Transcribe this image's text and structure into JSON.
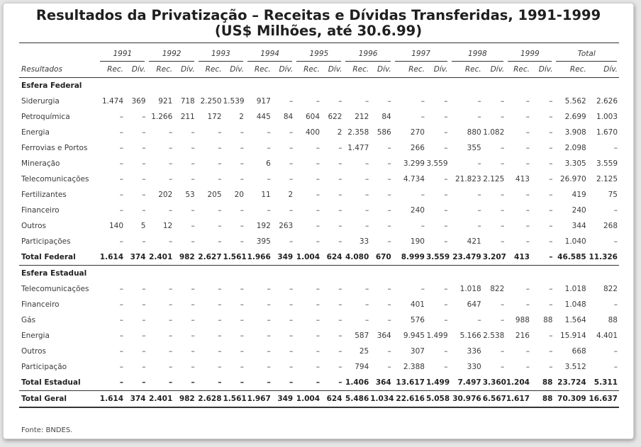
{
  "title": {
    "line1": "Resultados da Privatização – Receitas e Dívidas Transferidas, 1991-1999",
    "line2": "(US$ Milhões, até 30.6.99)"
  },
  "years": [
    "1991",
    "1992",
    "1993",
    "1994",
    "1995",
    "1996",
    "1997",
    "1998",
    "1999",
    "Total"
  ],
  "subheader": {
    "label": "Resultados",
    "rec": "Rec.",
    "div": "Dív."
  },
  "sections": {
    "federal": "Esfera Federal",
    "estadual": "Esfera Estadual"
  },
  "federal_rows": [
    {
      "label": "Siderurgia",
      "values": [
        "1.474",
        "369",
        "921",
        "718",
        "2.250",
        "1.539",
        "917",
        "–",
        "–",
        "–",
        "–",
        "–",
        "–",
        "–",
        "–",
        "–",
        "–",
        "–",
        "5.562",
        "2.626"
      ]
    },
    {
      "label": "Petroquímica",
      "values": [
        "–",
        "–",
        "1.266",
        "211",
        "172",
        "2",
        "445",
        "84",
        "604",
        "622",
        "212",
        "84",
        "–",
        "–",
        "–",
        "–",
        "–",
        "–",
        "2.699",
        "1.003"
      ]
    },
    {
      "label": "Energia",
      "values": [
        "–",
        "–",
        "–",
        "–",
        "–",
        "–",
        "–",
        "–",
        "400",
        "2",
        "2.358",
        "586",
        "270",
        "–",
        "880",
        "1.082",
        "–",
        "–",
        "3.908",
        "1.670"
      ]
    },
    {
      "label": "Ferrovias e Portos",
      "values": [
        "–",
        "–",
        "–",
        "–",
        "–",
        "–",
        "–",
        "–",
        "–",
        "–",
        "1.477",
        "–",
        "266",
        "–",
        "355",
        "–",
        "–",
        "–",
        "2.098",
        "–"
      ]
    },
    {
      "label": "Mineração",
      "values": [
        "–",
        "–",
        "–",
        "–",
        "–",
        "–",
        "6",
        "–",
        "–",
        "–",
        "–",
        "–",
        "3.299",
        "3.559",
        "–",
        "–",
        "–",
        "–",
        "3.305",
        "3.559"
      ]
    },
    {
      "label": "Telecomunicações",
      "values": [
        "–",
        "–",
        "–",
        "–",
        "–",
        "–",
        "–",
        "–",
        "–",
        "–",
        "–",
        "–",
        "4.734",
        "–",
        "21.823",
        "2.125",
        "413",
        "–",
        "26.970",
        "2.125"
      ]
    },
    {
      "label": "Fertilizantes",
      "values": [
        "–",
        "–",
        "202",
        "53",
        "205",
        "20",
        "11",
        "2",
        "–",
        "–",
        "–",
        "–",
        "–",
        "–",
        "–",
        "–",
        "–",
        "–",
        "419",
        "75"
      ]
    },
    {
      "label": "Financeiro",
      "values": [
        "–",
        "–",
        "–",
        "–",
        "–",
        "–",
        "–",
        "–",
        "–",
        "–",
        "–",
        "–",
        "240",
        "–",
        "–",
        "–",
        "–",
        "–",
        "240",
        "–"
      ]
    },
    {
      "label": "Outros",
      "values": [
        "140",
        "5",
        "12",
        "–",
        "–",
        "–",
        "192",
        "263",
        "–",
        "–",
        "–",
        "–",
        "–",
        "–",
        "–",
        "–",
        "–",
        "–",
        "344",
        "268"
      ]
    },
    {
      "label": "Participações",
      "values": [
        "–",
        "–",
        "–",
        "–",
        "–",
        "–",
        "395",
        "–",
        "–",
        "–",
        "33",
        "–",
        "190",
        "–",
        "421",
        "–",
        "–",
        "–",
        "1.040",
        "–"
      ]
    }
  ],
  "total_federal": {
    "label": "Total Federal",
    "values": [
      "1.614",
      "374",
      "2.401",
      "982",
      "2.627",
      "1.561",
      "1.966",
      "349",
      "1.004",
      "624",
      "4.080",
      "670",
      "8.999",
      "3.559",
      "23.479",
      "3.207",
      "413",
      "–",
      "46.585",
      "11.326"
    ]
  },
  "estadual_rows": [
    {
      "label": "Telecomunicações",
      "values": [
        "–",
        "–",
        "–",
        "–",
        "–",
        "–",
        "–",
        "–",
        "–",
        "–",
        "–",
        "–",
        "–",
        "–",
        "1.018",
        "822",
        "–",
        "–",
        "1.018",
        "822"
      ]
    },
    {
      "label": "Financeiro",
      "values": [
        "–",
        "–",
        "–",
        "–",
        "–",
        "–",
        "–",
        "–",
        "–",
        "–",
        "–",
        "–",
        "401",
        "–",
        "647",
        "–",
        "–",
        "–",
        "1.048",
        "–"
      ]
    },
    {
      "label": "Gás",
      "values": [
        "–",
        "–",
        "–",
        "–",
        "–",
        "–",
        "–",
        "–",
        "–",
        "–",
        "–",
        "–",
        "576",
        "–",
        "–",
        "–",
        "988",
        "88",
        "1.564",
        "88"
      ]
    },
    {
      "label": "Energia",
      "values": [
        "–",
        "–",
        "–",
        "–",
        "–",
        "–",
        "–",
        "–",
        "–",
        "–",
        "587",
        "364",
        "9.945",
        "1.499",
        "5.166",
        "2.538",
        "216",
        "–",
        "15.914",
        "4.401"
      ]
    },
    {
      "label": "Outros",
      "values": [
        "–",
        "–",
        "–",
        "–",
        "–",
        "–",
        "–",
        "–",
        "–",
        "–",
        "25",
        "–",
        "307",
        "–",
        "336",
        "–",
        "–",
        "–",
        "668",
        "–"
      ]
    },
    {
      "label": "Participação",
      "values": [
        "–",
        "–",
        "–",
        "–",
        "–",
        "–",
        "–",
        "–",
        "–",
        "–",
        "794",
        "–",
        "2.388",
        "–",
        "330",
        "–",
        "–",
        "–",
        "3.512",
        "–"
      ]
    }
  ],
  "total_estadual": {
    "label": "Total Estadual",
    "values": [
      "–",
      "–",
      "–",
      "–",
      "–",
      "–",
      "–",
      "–",
      "–",
      "–",
      "1.406",
      "364",
      "13.617",
      "1.499",
      "7.497",
      "3.360",
      "1.204",
      "88",
      "23.724",
      "5.311"
    ]
  },
  "total_geral": {
    "label": "Total Geral",
    "values": [
      "1.614",
      "374",
      "2.401",
      "982",
      "2.628",
      "1.561",
      "1.967",
      "349",
      "1.004",
      "624",
      "5.486",
      "1.034",
      "22.616",
      "5.058",
      "30.976",
      "6.567",
      "1.617",
      "88",
      "70.309",
      "16.637"
    ]
  },
  "source": "Fonte: BNDES."
}
